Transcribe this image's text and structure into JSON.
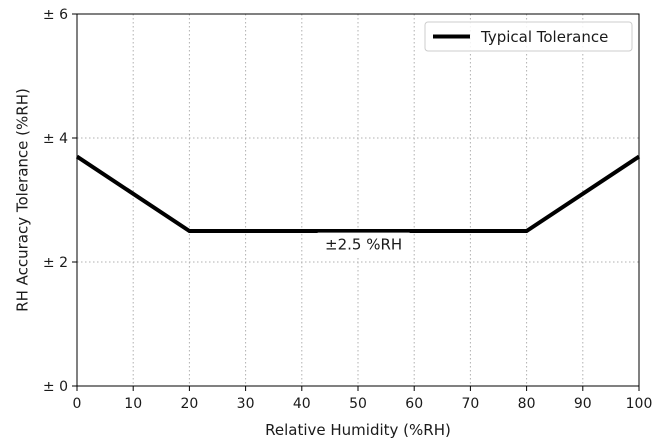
{
  "chart_data": {
    "type": "line",
    "xlabel": "Relative Humidity (%RH)",
    "ylabel": "RH Accuracy Tolerance (%RH)",
    "xlim": [
      0,
      100
    ],
    "ylim": [
      0,
      6
    ],
    "x_ticks": [
      0,
      10,
      20,
      30,
      40,
      50,
      60,
      70,
      80,
      90,
      100
    ],
    "x_tick_labels": [
      "0",
      "10",
      "20",
      "30",
      "40",
      "50",
      "60",
      "70",
      "80",
      "90",
      "100"
    ],
    "y_ticks": [
      0,
      2,
      4,
      6
    ],
    "y_tick_labels": [
      "± 0",
      "± 2",
      "± 4",
      "± 6"
    ],
    "grid": true,
    "grid_style": "dotted",
    "legend_position": "top-right",
    "series": [
      {
        "name": "Typical Tolerance",
        "color": "#000000",
        "x": [
          0,
          20,
          80,
          100
        ],
        "y": [
          3.7,
          2.5,
          2.5,
          3.7
        ]
      }
    ],
    "annotations": [
      {
        "text": "±2.5 %RH",
        "x": 51,
        "y": 2.2
      }
    ]
  }
}
